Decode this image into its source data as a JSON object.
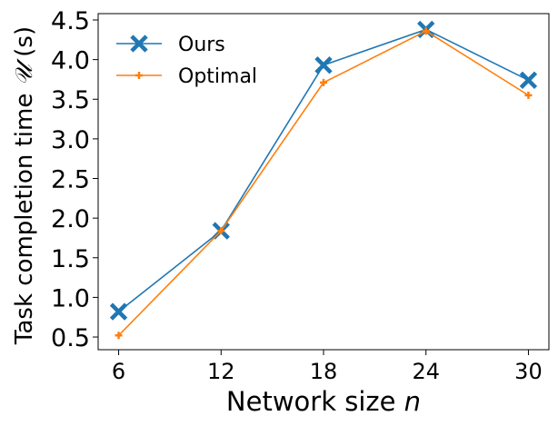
{
  "chart_data": {
    "type": "line",
    "x": [
      6,
      12,
      18,
      24,
      30
    ],
    "x_tick_labels": [
      "6",
      "12",
      "18",
      "24",
      "30"
    ],
    "y_tick_values": [
      0.5,
      1.0,
      1.5,
      2.0,
      2.5,
      3.0,
      3.5,
      4.0,
      4.5
    ],
    "y_tick_labels": [
      "0.5",
      "1.0",
      "1.5",
      "2.0",
      "2.5",
      "3.0",
      "3.5",
      "4.0",
      "4.5"
    ],
    "xlim": [
      4.8,
      31.2
    ],
    "ylim": [
      0.34,
      4.58
    ],
    "xlabel_prefix": "Network size ",
    "xlabel_var": "n",
    "ylabel_prefix": "Task completion time ",
    "ylabel_var": "𝒰",
    "ylabel_suffix": " (s)",
    "legend_position": "top-left",
    "grid": false,
    "series": [
      {
        "name": "Ours",
        "values": [
          0.82,
          1.84,
          3.93,
          4.38,
          3.74
        ],
        "color": "#1f77b4",
        "marker": "X"
      },
      {
        "name": "Optimal",
        "values": [
          0.52,
          1.84,
          3.71,
          4.36,
          3.55
        ],
        "color": "#ff7f0e",
        "marker": "plus"
      }
    ]
  }
}
